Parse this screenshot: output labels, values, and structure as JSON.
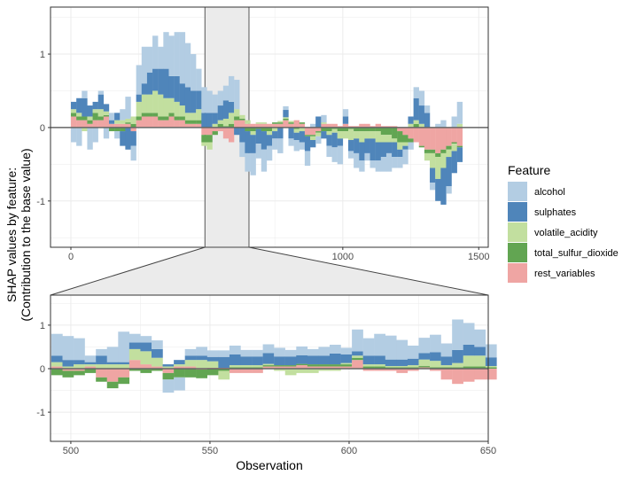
{
  "chart_data": {
    "type": "bar",
    "subtype": "stacked-signed",
    "ylabel_lines": [
      "SHAP values by feature:",
      "(Contribution to the base value)"
    ],
    "xlabel": "Observation",
    "legend": {
      "title": "Feature",
      "placement": "right",
      "entries": [
        {
          "key": "alcohol",
          "label": "alcohol",
          "color": "#b3cde3"
        },
        {
          "key": "sulphates",
          "label": "sulphates",
          "color": "#4f85ba"
        },
        {
          "key": "volatile_acidity",
          "label": "volatile_acidity",
          "color": "#c2df9f"
        },
        {
          "key": "total_sulfur_dioxide",
          "label": "total_sulfur_dioxide",
          "color": "#62a552"
        },
        {
          "key": "rest_variables",
          "label": "rest_variables",
          "color": "#efa5a3"
        }
      ]
    },
    "stack_order": [
      "rest_variables",
      "total_sulfur_dioxide",
      "volatile_acidity",
      "sulphates",
      "alcohol"
    ],
    "main_panel": {
      "xlim": [
        -75,
        1535
      ],
      "ylim": [
        -1.63,
        1.64
      ],
      "xticks": [
        0,
        500,
        1000,
        1500
      ],
      "yticks": [
        -1,
        0,
        1
      ],
      "highlight": [
        493,
        655
      ],
      "bin_start": 0,
      "bin_width": 20,
      "series": {
        "alcohol": [
          -0.2,
          -0.25,
          0.1,
          -0.3,
          -0.2,
          0.05,
          -0.15,
          0.1,
          -0.1,
          0.15,
          0.3,
          -0.2,
          0.4,
          0.5,
          0.35,
          0.45,
          0.3,
          0.5,
          0.55,
          0.6,
          0.7,
          0.6,
          0.5,
          0.3,
          0.35,
          0.3,
          0.25,
          0.2,
          0.2,
          0.35,
          0.4,
          -0.2,
          -0.25,
          -0.3,
          -0.2,
          -0.3,
          -0.2,
          -0.15,
          -0.2,
          0.05,
          -0.1,
          -0.15,
          -0.1,
          -0.2,
          0.05,
          -0.1,
          0.1,
          -0.15,
          -0.2,
          -0.25,
          0.1,
          -0.1,
          -0.2,
          -0.15,
          -0.1,
          -0.1,
          -0.15,
          -0.2,
          -0.25,
          -0.15,
          -0.15,
          -0.2,
          -0.1,
          0.15,
          0.2,
          0.1,
          -0.1,
          0.05,
          0.1,
          -0.1,
          0.15,
          0.3
        ],
        "sulphates": [
          0.1,
          0.2,
          0.25,
          0.15,
          0.1,
          0.2,
          0.1,
          0.05,
          0.1,
          -0.2,
          -0.3,
          -0.2,
          0.1,
          0.15,
          0.3,
          0.3,
          0.35,
          0.4,
          0.3,
          0.35,
          0.3,
          0.35,
          0.3,
          0.25,
          0.2,
          0.2,
          0.15,
          0.2,
          0.25,
          0.15,
          -0.1,
          -0.2,
          -0.3,
          -0.25,
          -0.2,
          -0.25,
          -0.15,
          -0.1,
          -0.15,
          0.1,
          -0.15,
          -0.1,
          -0.15,
          -0.2,
          -0.1,
          0.15,
          -0.1,
          -0.15,
          -0.2,
          -0.1,
          0.1,
          -0.15,
          -0.2,
          -0.25,
          -0.2,
          -0.3,
          -0.25,
          -0.2,
          -0.15,
          -0.2,
          -0.1,
          -0.05,
          0.1,
          0.3,
          0.25,
          0.2,
          -0.2,
          -0.3,
          -0.5,
          -0.4,
          -0.3,
          -0.2
        ],
        "volatile_acidity": [
          0.05,
          0.05,
          -0.05,
          0.05,
          0.05,
          0.1,
          0.05,
          0,
          0.05,
          0.05,
          0.05,
          0.1,
          0.2,
          0.25,
          0.25,
          0.3,
          0.3,
          0.25,
          0.2,
          0.2,
          0.15,
          0.1,
          0.1,
          0.15,
          -0.05,
          -0.1,
          0.05,
          0.05,
          0.1,
          0.15,
          0.1,
          0.05,
          0.05,
          -0.05,
          0.02,
          0.02,
          -0.05,
          -0.05,
          0.02,
          0.02,
          0.02,
          -0.05,
          -0.05,
          0,
          -0.05,
          -0.05,
          0.02,
          -0.05,
          -0.05,
          -0.1,
          -0.1,
          -0.15,
          -0.1,
          -0.15,
          -0.1,
          -0.1,
          -0.15,
          -0.1,
          -0.1,
          -0.05,
          -0.1,
          -0.05,
          0.05,
          0.05,
          0.05,
          -0.1,
          -0.2,
          -0.3,
          -0.2,
          -0.1,
          -0.1,
          0.05
        ],
        "total_sulfur_dioxide": [
          0.05,
          0.05,
          0.05,
          0.05,
          0.1,
          0.05,
          0.02,
          -0.05,
          -0.05,
          -0.05,
          0.02,
          0.05,
          0.05,
          0.05,
          0.05,
          0.05,
          0.05,
          0.05,
          0.05,
          0.05,
          0.05,
          0.05,
          0.05,
          0.05,
          -0.1,
          -0.1,
          -0.05,
          0.05,
          0.02,
          0.05,
          0.05,
          0.02,
          -0.05,
          -0.05,
          -0.02,
          -0.05,
          -0.05,
          0.02,
          0.02,
          0.02,
          0.02,
          -0.02,
          0.02,
          -0.02,
          -0.02,
          -0.02,
          -0.05,
          -0.05,
          -0.02,
          -0.05,
          -0.05,
          -0.02,
          -0.05,
          -0.05,
          -0.05,
          -0.05,
          -0.05,
          -0.1,
          -0.1,
          -0.15,
          -0.15,
          -0.1,
          -0.05,
          0.05,
          -0.02,
          -0.05,
          -0.05,
          -0.05,
          -0.05,
          -0.05,
          -0.02,
          -0.02
        ],
        "rest_variables": [
          0.15,
          0.1,
          0.1,
          0.05,
          0.1,
          0.1,
          0.15,
          0.05,
          0.05,
          0.05,
          0.05,
          -0.05,
          0.1,
          0.15,
          0.15,
          0.15,
          0.1,
          0.1,
          0.15,
          0.1,
          0.1,
          0.05,
          0.05,
          0.05,
          -0.1,
          -0.1,
          -0.05,
          -0.05,
          -0.15,
          -0.2,
          0.1,
          0.1,
          0.05,
          0.05,
          0.05,
          0.05,
          0.05,
          0.05,
          0.05,
          0.1,
          0.05,
          0.1,
          0.05,
          -0.1,
          -0.1,
          -0.05,
          0.05,
          0.05,
          0.05,
          0.02,
          0.05,
          0.02,
          0.02,
          0.05,
          0.05,
          0.02,
          0.05,
          0.02,
          0.02,
          0.02,
          -0.05,
          -0.1,
          -0.15,
          -0.2,
          -0.25,
          -0.3,
          -0.3,
          -0.35,
          -0.3,
          -0.25,
          -0.2,
          -0.25
        ]
      }
    },
    "zoom_panel": {
      "xlim": [
        492.7,
        650
      ],
      "ylim": [
        -1.67,
        1.69
      ],
      "xticks": [
        500,
        550,
        600,
        650
      ],
      "yticks": [
        -1,
        0,
        1
      ],
      "bin_start": 493,
      "bin_width": 4,
      "series": {
        "alcohol": [
          0.5,
          0.55,
          0.5,
          0.15,
          0.15,
          0.35,
          0.7,
          0.2,
          0.15,
          0.2,
          -0.3,
          -0.3,
          0.15,
          0.2,
          0.15,
          0.15,
          0.2,
          0.15,
          0.15,
          0.2,
          0.2,
          0.15,
          0.2,
          0.15,
          0.2,
          0.2,
          0.15,
          0.5,
          0.4,
          0.5,
          0.55,
          0.45,
          0.3,
          0.35,
          0.4,
          0.3,
          0.7,
          0.5,
          0.4,
          0.3
        ],
        "sulphates": [
          0.15,
          0.15,
          0.1,
          0.05,
          0.2,
          0.05,
          0.05,
          0.15,
          0.2,
          0.2,
          0.05,
          0.1,
          0.1,
          0.1,
          0.1,
          0.25,
          0.25,
          0.2,
          0.2,
          0.25,
          0.2,
          0.2,
          0.2,
          0.2,
          0.2,
          0.25,
          0.2,
          0.1,
          0.2,
          0.2,
          0.15,
          0.15,
          0.15,
          0.15,
          0.2,
          0.2,
          0.3,
          0.25,
          0.2,
          0.2
        ],
        "volatile_acidity": [
          0.1,
          0.05,
          0.1,
          0.05,
          0.1,
          0.1,
          0.1,
          0.25,
          0.3,
          0.2,
          0.05,
          0.05,
          0.15,
          0.2,
          0.15,
          -0.2,
          0.05,
          0.05,
          0.05,
          0.03,
          -0.05,
          -0.15,
          -0.1,
          -0.1,
          -0.05,
          -0.05,
          0.03,
          0.05,
          0.05,
          0.05,
          0.03,
          0.03,
          0.05,
          0.15,
          0.15,
          0.05,
          0.1,
          0.25,
          0.25,
          0.03
        ],
        "total_sulfur_dioxide": [
          -0.15,
          -0.15,
          -0.1,
          -0.1,
          -0.1,
          -0.15,
          -0.15,
          -0.05,
          -0.1,
          -0.05,
          -0.15,
          -0.2,
          -0.2,
          -0.2,
          -0.15,
          -0.05,
          0.03,
          0.03,
          0.03,
          0.03,
          0.03,
          0.03,
          0.03,
          0.05,
          0.05,
          0.05,
          0.05,
          0.05,
          0.05,
          0.05,
          0.03,
          0.03,
          0.03,
          0.03,
          0.03,
          0.03,
          0.03,
          0.05,
          0.05,
          0.03
        ],
        "rest_variables": [
          0.05,
          -0.05,
          -0.05,
          0.05,
          -0.2,
          -0.3,
          -0.2,
          0.2,
          0.1,
          0.05,
          -0.1,
          0.05,
          0.05,
          -0.02,
          0.02,
          0.02,
          -0.1,
          -0.1,
          -0.1,
          0.05,
          0.05,
          0.05,
          0.08,
          0.05,
          0.05,
          0.05,
          0.05,
          0.2,
          -0.05,
          -0.05,
          -0.05,
          -0.1,
          -0.05,
          0.03,
          -0.05,
          -0.25,
          -0.35,
          -0.3,
          -0.25,
          -0.25
        ]
      }
    }
  }
}
